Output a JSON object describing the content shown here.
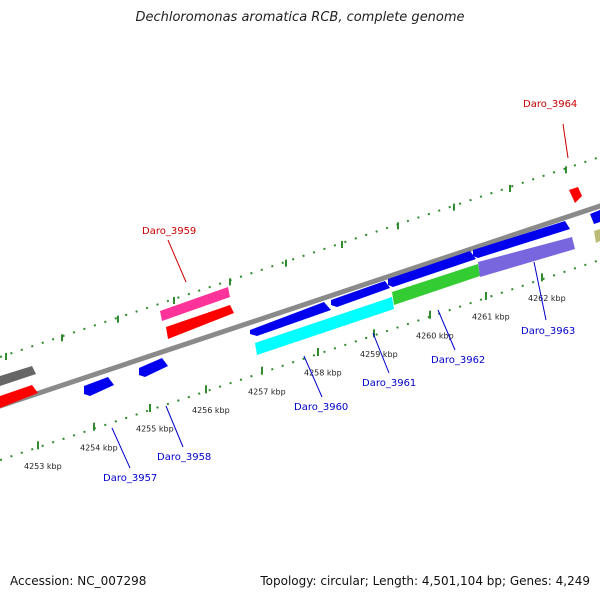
{
  "title": "Dechloromonas aromatica RCB, complete genome",
  "footer": {
    "accession": "Accession: NC_007298",
    "summary": "Topology: circular; Length: 4,501,104 bp; Genes: 4,249"
  },
  "ticks": [
    {
      "label": "4253 kbp"
    },
    {
      "label": "4254 kbp"
    },
    {
      "label": "4255 kbp"
    },
    {
      "label": "4256 kbp"
    },
    {
      "label": "4257 kbp"
    },
    {
      "label": "4258 kbp"
    },
    {
      "label": "4259 kbp"
    },
    {
      "label": "4260 kbp"
    },
    {
      "label": "4261 kbp"
    },
    {
      "label": "4262 kbp"
    }
  ],
  "gene_labels": [
    {
      "name": "Daro_3957",
      "color": "#0000cc"
    },
    {
      "name": "Daro_3958",
      "color": "#0000cc"
    },
    {
      "name": "Daro_3959",
      "color": "#cc0000"
    },
    {
      "name": "Daro_3960",
      "color": "#0000cc"
    },
    {
      "name": "Daro_3961",
      "color": "#0000cc"
    },
    {
      "name": "Daro_3962",
      "color": "#0000cc"
    },
    {
      "name": "Daro_3963",
      "color": "#0000cc"
    },
    {
      "name": "Daro_3964",
      "color": "#cc0000"
    }
  ],
  "colors": {
    "backbone": "#8a8a8a",
    "tick_dots": "#2e8b2e",
    "forward_gene": "#0000ee",
    "reverse_gene": "#ff0000",
    "pink": "#ff3399",
    "cyan": "#00ffff",
    "green": "#33cc33",
    "lavender": "#7766dd",
    "gray": "#666666",
    "olive": "#bbbb77"
  }
}
